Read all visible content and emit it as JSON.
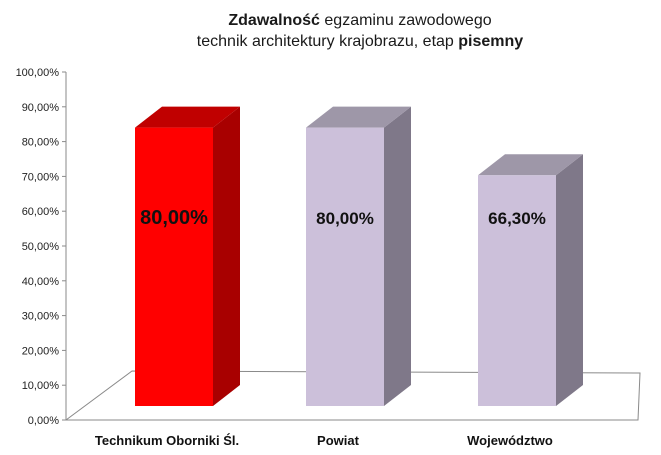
{
  "title": {
    "line1_bold": "Zdawalność",
    "line1_rest": " egzaminu zawodowego",
    "line2_rest": "technik architektury  krajobrazu, etap ",
    "line2_bold": "pisemny"
  },
  "chart_data": {
    "type": "bar",
    "categories": [
      "Technikum Oborniki Śl.",
      "Powiat",
      "Województwo"
    ],
    "values": [
      80.0,
      80.0,
      66.3
    ],
    "data_labels": [
      "80,00%",
      "80,00%",
      "66,30%"
    ],
    "y_ticks": [
      "0,00%",
      "10,00%",
      "20,00%",
      "30,00%",
      "40,00%",
      "50,00%",
      "60,00%",
      "70,00%",
      "80,00%",
      "90,00%",
      "100,00%"
    ],
    "ylim": [
      0,
      100
    ],
    "grid": false,
    "legend": "none",
    "colors": {
      "front": [
        "#ff0000",
        "#ccc0da",
        "#ccc0da"
      ],
      "side": [
        "#a80000",
        "#7f7889",
        "#7f7889"
      ],
      "top": [
        "#c00000",
        "#9e97a8",
        "#9e97a8"
      ]
    }
  }
}
